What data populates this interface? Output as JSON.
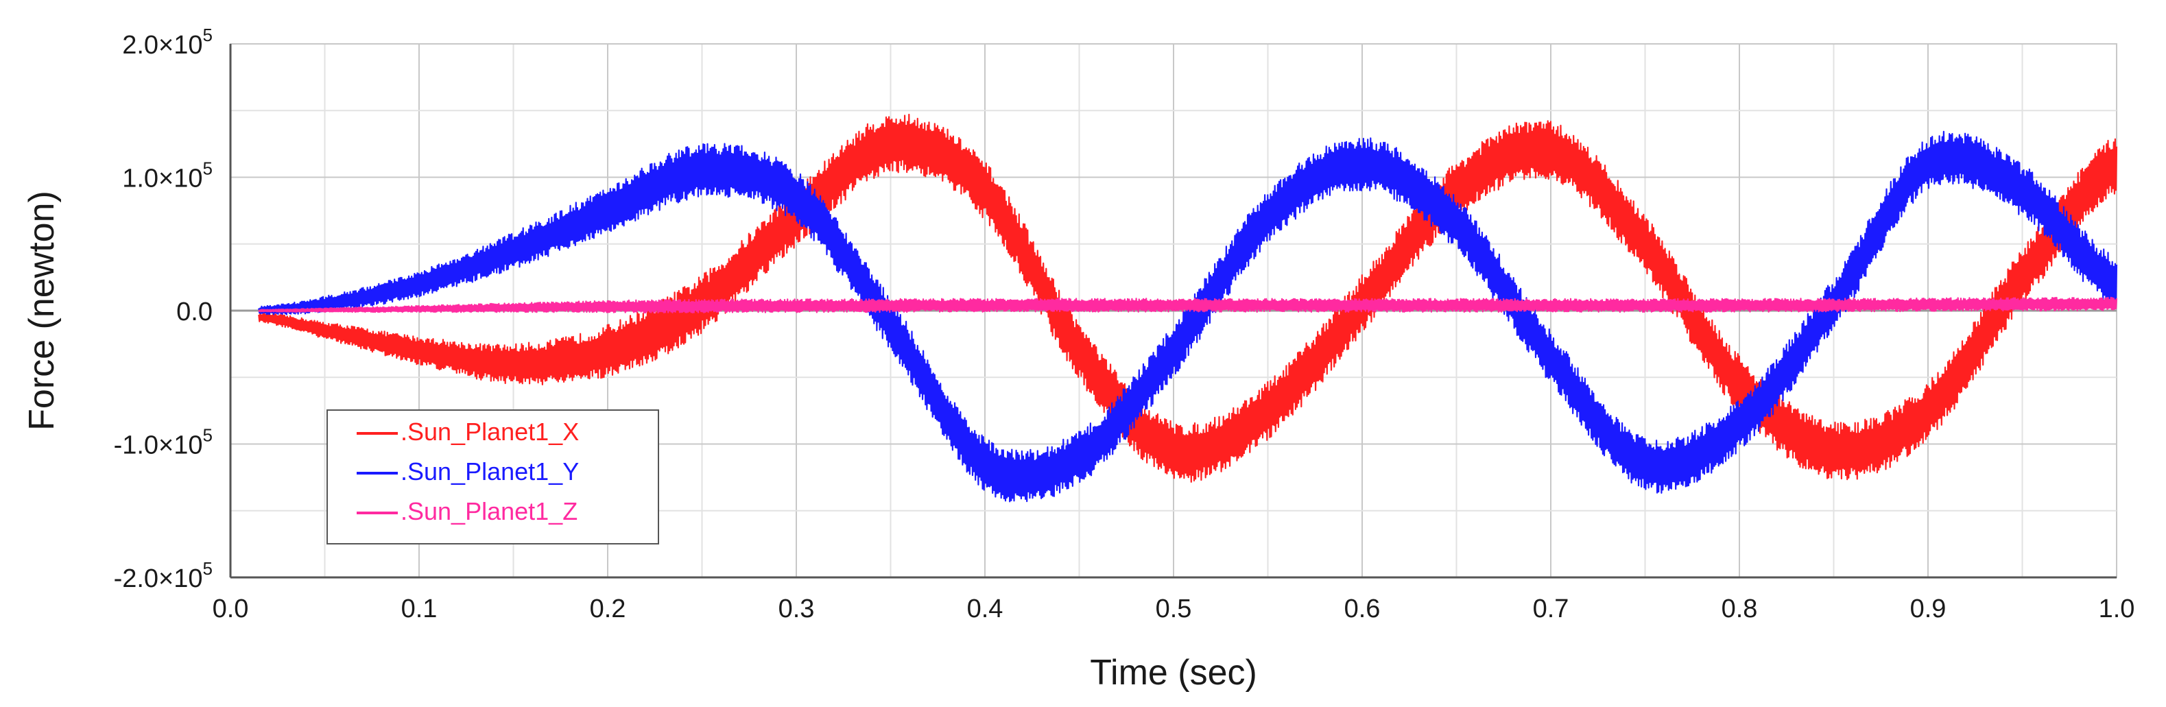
{
  "chart_data": {
    "type": "line",
    "title": "",
    "xlabel": "Time (sec)",
    "ylabel": "Force (newton)",
    "xlim": [
      0.0,
      1.0
    ],
    "ylim": [
      -200000,
      200000
    ],
    "x_ticks": [
      0.0,
      0.1,
      0.2,
      0.3,
      0.4,
      0.5,
      0.6,
      0.7,
      0.8,
      0.9,
      1.0
    ],
    "x_tick_labels": [
      "0.0",
      "0.1",
      "0.2",
      "0.3",
      "0.4",
      "0.5",
      "0.6",
      "0.7",
      "0.8",
      "0.9",
      "1.0"
    ],
    "y_ticks": [
      {
        "value": 200000,
        "mantissa": "2.0",
        "times": "×10",
        "exp": "5"
      },
      {
        "value": 100000,
        "mantissa": "1.0",
        "times": "×10",
        "exp": "5"
      },
      {
        "value": 0,
        "mantissa": "0.0",
        "times": "",
        "exp": ""
      },
      {
        "value": -100000,
        "mantissa": "-1.0",
        "times": "×10",
        "exp": "5"
      },
      {
        "value": -200000,
        "mantissa": "-2.0",
        "times": "×10",
        "exp": "5"
      }
    ],
    "grid": true,
    "legend_position": "bottom-left",
    "series": [
      {
        "name": ".Sun_Planet1_X",
        "color": "#ff2020",
        "x": [
          0.015,
          0.05,
          0.1,
          0.15,
          0.2,
          0.25,
          0.3,
          0.35,
          0.4,
          0.45,
          0.5,
          0.55,
          0.6,
          0.65,
          0.7,
          0.75,
          0.8,
          0.85,
          0.9,
          0.95,
          1.0
        ],
        "y": [
          -5000,
          -15000,
          -30000,
          -40000,
          -30000,
          5000,
          70000,
          125000,
          90000,
          -30000,
          -105000,
          -75000,
          5000,
          90000,
          120000,
          50000,
          -55000,
          -105000,
          -75000,
          25000,
          110000
        ],
        "oscillation_amplitude": 22000
      },
      {
        "name": ".Sun_Planet1_Y",
        "color": "#1a1aff",
        "x": [
          0.015,
          0.05,
          0.1,
          0.15,
          0.2,
          0.25,
          0.3,
          0.35,
          0.4,
          0.45,
          0.5,
          0.55,
          0.6,
          0.65,
          0.7,
          0.75,
          0.8,
          0.85,
          0.9,
          0.95,
          1.0
        ],
        "y": [
          0,
          5000,
          20000,
          45000,
          75000,
          105000,
          85000,
          -10000,
          -115000,
          -110000,
          -30000,
          70000,
          110000,
          65000,
          -35000,
          -115000,
          -85000,
          5000,
          110000,
          90000,
          20000
        ],
        "oscillation_amplitude": 20000
      },
      {
        "name": ".Sun_Planet1_Z",
        "color": "#ff2aa0",
        "x": [
          0.015,
          0.2,
          0.4,
          0.6,
          0.8,
          1.0
        ],
        "y": [
          0,
          3000,
          4000,
          4000,
          4000,
          5000
        ],
        "oscillation_amplitude": 5000
      }
    ]
  }
}
